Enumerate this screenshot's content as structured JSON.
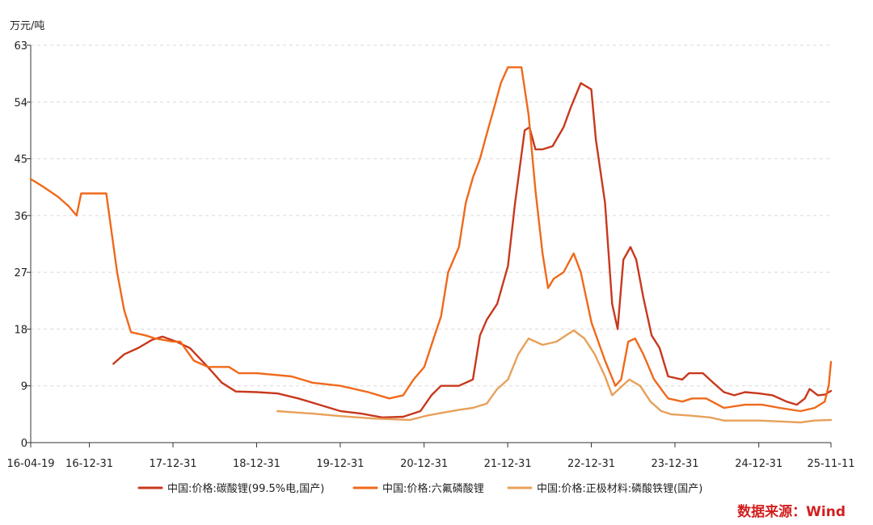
{
  "chart_data": {
    "type": "line",
    "title": "",
    "xlabel": "",
    "ylabel": "万元/吨",
    "ylim": [
      0,
      63
    ],
    "yticks": [
      0,
      9,
      18,
      27,
      36,
      45,
      54,
      63
    ],
    "y_tick_labels": [
      "0",
      "9",
      "18",
      "27",
      "36",
      "45",
      "54",
      "63"
    ],
    "xlim": [
      "2016-04-19",
      "2025-11-11"
    ],
    "xticks": [
      {
        "date": "2016-04-19",
        "label": "16-04-19"
      },
      {
        "date": "2016-12-31",
        "label": "16-12-31"
      },
      {
        "date": "2017-12-31",
        "label": "17-12-31"
      },
      {
        "date": "2018-12-31",
        "label": "18-12-31"
      },
      {
        "date": "2019-12-31",
        "label": "19-12-31"
      },
      {
        "date": "2020-12-31",
        "label": "20-12-31"
      },
      {
        "date": "2021-12-31",
        "label": "21-12-31"
      },
      {
        "date": "2022-12-31",
        "label": "22-12-31"
      },
      {
        "date": "2023-12-31",
        "label": "23-12-31"
      },
      {
        "date": "2024-12-31",
        "label": "24-12-31"
      },
      {
        "date": "2025-11-11",
        "label": "25-11-11"
      }
    ],
    "grid": true,
    "legend_position": "bottom",
    "source": "数据来源：Wind",
    "series": [
      {
        "name": "中国:价格:碳酸锂(99.5%电,国产)",
        "color": "#c8381d",
        "points": [
          [
            "2017-04-15",
            12.5
          ],
          [
            "2017-06-01",
            14.0
          ],
          [
            "2017-08-01",
            15.0
          ],
          [
            "2017-10-01",
            16.3
          ],
          [
            "2017-11-15",
            16.8
          ],
          [
            "2018-01-15",
            16.0
          ],
          [
            "2018-03-15",
            15.0
          ],
          [
            "2018-06-01",
            12.0
          ],
          [
            "2018-08-01",
            9.5
          ],
          [
            "2018-10-01",
            8.1
          ],
          [
            "2019-01-01",
            8.0
          ],
          [
            "2019-04-01",
            7.8
          ],
          [
            "2019-07-01",
            7.0
          ],
          [
            "2019-10-01",
            6.0
          ],
          [
            "2020-01-01",
            5.0
          ],
          [
            "2020-04-01",
            4.6
          ],
          [
            "2020-07-01",
            4.0
          ],
          [
            "2020-10-01",
            4.1
          ],
          [
            "2020-12-15",
            5.0
          ],
          [
            "2021-02-01",
            7.5
          ],
          [
            "2021-03-15",
            9.0
          ],
          [
            "2021-06-01",
            9.0
          ],
          [
            "2021-08-01",
            10.0
          ],
          [
            "2021-09-01",
            17.0
          ],
          [
            "2021-10-01",
            19.5
          ],
          [
            "2021-11-15",
            22.0
          ],
          [
            "2022-01-01",
            28.0
          ],
          [
            "2022-02-01",
            38.0
          ],
          [
            "2022-03-15",
            49.5
          ],
          [
            "2022-04-05",
            50.0
          ],
          [
            "2022-05-01",
            46.5
          ],
          [
            "2022-06-01",
            46.5
          ],
          [
            "2022-07-15",
            47.0
          ],
          [
            "2022-09-01",
            50.0
          ],
          [
            "2022-10-01",
            53.0
          ],
          [
            "2022-11-15",
            57.0
          ],
          [
            "2022-12-31",
            56.0
          ],
          [
            "2023-01-20",
            48.0
          ],
          [
            "2023-03-01",
            38.0
          ],
          [
            "2023-04-01",
            22.0
          ],
          [
            "2023-04-25",
            18.0
          ],
          [
            "2023-05-20",
            29.0
          ],
          [
            "2023-06-20",
            31.0
          ],
          [
            "2023-07-15",
            29.0
          ],
          [
            "2023-08-15",
            23.0
          ],
          [
            "2023-09-20",
            17.0
          ],
          [
            "2023-10-25",
            15.0
          ],
          [
            "2023-12-01",
            10.5
          ],
          [
            "2024-02-01",
            10.0
          ],
          [
            "2024-03-01",
            11.0
          ],
          [
            "2024-05-01",
            11.0
          ],
          [
            "2024-06-15",
            9.5
          ],
          [
            "2024-08-01",
            8.0
          ],
          [
            "2024-09-15",
            7.5
          ],
          [
            "2024-11-01",
            8.0
          ],
          [
            "2025-01-01",
            7.8
          ],
          [
            "2025-03-01",
            7.5
          ],
          [
            "2025-05-01",
            6.5
          ],
          [
            "2025-06-15",
            6.0
          ],
          [
            "2025-07-20",
            7.0
          ],
          [
            "2025-08-10",
            8.5
          ],
          [
            "2025-09-15",
            7.5
          ],
          [
            "2025-10-15",
            7.6
          ],
          [
            "2025-11-11",
            8.2
          ]
        ]
      },
      {
        "name": "中国:价格:六氟磷酸锂",
        "color": "#f0691b",
        "points": [
          [
            "2016-04-19",
            41.8
          ],
          [
            "2016-06-15",
            40.5
          ],
          [
            "2016-08-15",
            39.0
          ],
          [
            "2016-10-01",
            37.5
          ],
          [
            "2016-11-05",
            36.0
          ],
          [
            "2016-11-25",
            39.5
          ],
          [
            "2017-01-01",
            39.5
          ],
          [
            "2017-03-15",
            39.5
          ],
          [
            "2017-04-01",
            35.0
          ],
          [
            "2017-05-01",
            27.0
          ],
          [
            "2017-06-01",
            21.0
          ],
          [
            "2017-07-01",
            17.5
          ],
          [
            "2017-09-01",
            17.0
          ],
          [
            "2017-10-15",
            16.5
          ],
          [
            "2017-12-31",
            16.0
          ],
          [
            "2018-02-01",
            16.0
          ],
          [
            "2018-04-01",
            13.0
          ],
          [
            "2018-06-01",
            12.0
          ],
          [
            "2018-09-01",
            12.0
          ],
          [
            "2018-10-15",
            11.0
          ],
          [
            "2019-01-01",
            11.0
          ],
          [
            "2019-06-01",
            10.5
          ],
          [
            "2019-09-01",
            9.5
          ],
          [
            "2020-01-01",
            9.0
          ],
          [
            "2020-05-01",
            8.0
          ],
          [
            "2020-08-01",
            7.0
          ],
          [
            "2020-10-01",
            7.5
          ],
          [
            "2020-11-15",
            10.0
          ],
          [
            "2021-01-01",
            12.0
          ],
          [
            "2021-02-15",
            17.0
          ],
          [
            "2021-03-15",
            20.0
          ],
          [
            "2021-04-15",
            27.0
          ],
          [
            "2021-06-01",
            31.0
          ],
          [
            "2021-07-01",
            38.0
          ],
          [
            "2021-08-01",
            42.0
          ],
          [
            "2021-09-01",
            45.0
          ],
          [
            "2021-10-01",
            49.0
          ],
          [
            "2021-11-01",
            53.0
          ],
          [
            "2021-12-01",
            57.0
          ],
          [
            "2022-01-01",
            59.5
          ],
          [
            "2022-03-01",
            59.5
          ],
          [
            "2022-04-01",
            52.0
          ],
          [
            "2022-05-01",
            40.0
          ],
          [
            "2022-06-01",
            30.0
          ],
          [
            "2022-06-25",
            24.5
          ],
          [
            "2022-07-20",
            26.0
          ],
          [
            "2022-09-01",
            27.0
          ],
          [
            "2022-10-15",
            30.0
          ],
          [
            "2022-11-15",
            27.0
          ],
          [
            "2023-01-01",
            19.0
          ],
          [
            "2023-03-01",
            13.0
          ],
          [
            "2023-04-15",
            9.0
          ],
          [
            "2023-05-10",
            10.0
          ],
          [
            "2023-06-10",
            16.0
          ],
          [
            "2023-07-10",
            16.5
          ],
          [
            "2023-08-15",
            14.0
          ],
          [
            "2023-10-01",
            10.0
          ],
          [
            "2023-12-01",
            7.0
          ],
          [
            "2024-02-01",
            6.5
          ],
          [
            "2024-03-15",
            7.0
          ],
          [
            "2024-05-15",
            7.0
          ],
          [
            "2024-08-01",
            5.5
          ],
          [
            "2024-11-01",
            6.0
          ],
          [
            "2025-01-15",
            6.0
          ],
          [
            "2025-04-01",
            5.5
          ],
          [
            "2025-07-01",
            5.0
          ],
          [
            "2025-09-01",
            5.5
          ],
          [
            "2025-10-15",
            6.5
          ],
          [
            "2025-11-01",
            9.0
          ],
          [
            "2025-11-11",
            12.8
          ]
        ]
      },
      {
        "name": "中国:价格:正极材料:磷酸铁锂(国产)",
        "color": "#e8a05a",
        "points": [
          [
            "2019-04-01",
            5.0
          ],
          [
            "2019-09-01",
            4.6
          ],
          [
            "2020-01-01",
            4.2
          ],
          [
            "2020-06-01",
            3.8
          ],
          [
            "2020-11-01",
            3.6
          ],
          [
            "2021-01-15",
            4.3
          ],
          [
            "2021-03-01",
            4.6
          ],
          [
            "2021-06-01",
            5.2
          ],
          [
            "2021-08-01",
            5.5
          ],
          [
            "2021-10-01",
            6.2
          ],
          [
            "2021-11-15",
            8.5
          ],
          [
            "2022-01-01",
            10.0
          ],
          [
            "2022-02-15",
            14.0
          ],
          [
            "2022-04-01",
            16.5
          ],
          [
            "2022-05-01",
            16.0
          ],
          [
            "2022-06-01",
            15.5
          ],
          [
            "2022-08-01",
            16.0
          ],
          [
            "2022-10-15",
            17.8
          ],
          [
            "2022-12-01",
            16.5
          ],
          [
            "2023-01-15",
            14.0
          ],
          [
            "2023-03-01",
            10.5
          ],
          [
            "2023-04-01",
            7.5
          ],
          [
            "2023-05-15",
            9.0
          ],
          [
            "2023-06-15",
            10.0
          ],
          [
            "2023-08-01",
            9.0
          ],
          [
            "2023-09-15",
            6.5
          ],
          [
            "2023-11-01",
            5.0
          ],
          [
            "2023-12-15",
            4.5
          ],
          [
            "2024-03-01",
            4.3
          ],
          [
            "2024-06-01",
            4.0
          ],
          [
            "2024-08-01",
            3.5
          ],
          [
            "2024-10-01",
            3.5
          ],
          [
            "2025-01-01",
            3.5
          ],
          [
            "2025-05-01",
            3.3
          ],
          [
            "2025-07-01",
            3.2
          ],
          [
            "2025-09-01",
            3.5
          ],
          [
            "2025-11-11",
            3.6
          ]
        ]
      }
    ]
  }
}
